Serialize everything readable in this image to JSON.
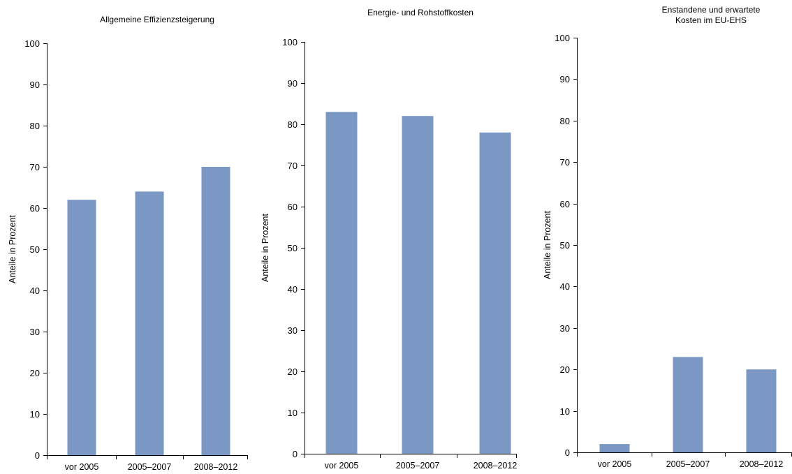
{
  "chart_data": [
    {
      "type": "bar",
      "title": [
        "Allgemeine Effizienzsteigerung"
      ],
      "ylabel": "Anteile in Prozent",
      "xlabel": "",
      "categories": [
        "vor 2005",
        "2005–2007",
        "2008–2012"
      ],
      "values": [
        62,
        64,
        70
      ],
      "ylim": [
        0,
        100
      ],
      "yticks": [
        "0",
        "10",
        "20",
        "30",
        "40",
        "50",
        "60",
        "70",
        "80",
        "90",
        "100"
      ],
      "bar_color": "#7a98c3",
      "grid": false,
      "legend": "none"
    },
    {
      "type": "bar",
      "title": [
        "Energie- und Rohstoffkosten"
      ],
      "ylabel": "Anteile in Prozent",
      "xlabel": "",
      "categories": [
        "vor 2005",
        "2005–2007",
        "2008–2012"
      ],
      "values": [
        83,
        82,
        78
      ],
      "ylim": [
        0,
        100
      ],
      "yticks": [
        "0",
        "10",
        "20",
        "30",
        "40",
        "50",
        "60",
        "70",
        "80",
        "90",
        "100"
      ],
      "bar_color": "#7a98c3",
      "grid": false,
      "legend": "none"
    },
    {
      "type": "bar",
      "title": [
        "Enstandene und erwartete",
        "Kosten im EU-EHS"
      ],
      "ylabel": "Anteile in Prozent",
      "xlabel": "",
      "categories": [
        "vor 2005",
        "2005–2007",
        "2008–2012"
      ],
      "values": [
        2,
        23,
        20
      ],
      "ylim": [
        0,
        100
      ],
      "yticks": [
        "0",
        "10",
        "20",
        "30",
        "40",
        "50",
        "60",
        "70",
        "80",
        "90",
        "100"
      ],
      "bar_color": "#7a98c3",
      "grid": false,
      "legend": "none"
    }
  ]
}
